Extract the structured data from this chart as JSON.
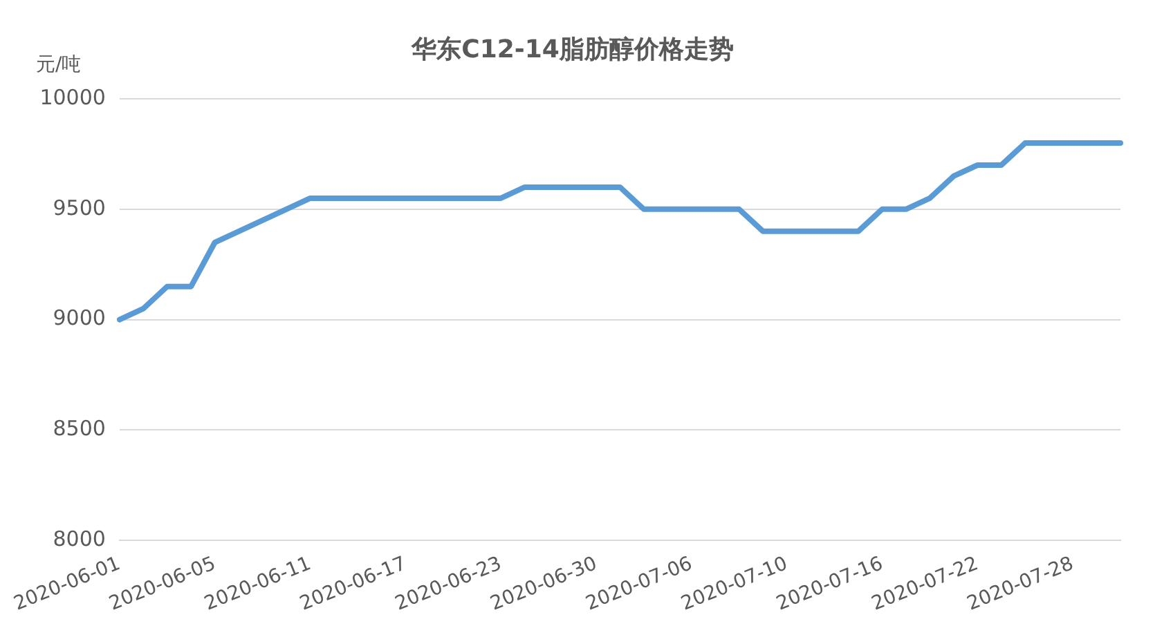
{
  "chart_data": {
    "type": "line",
    "title": "华东C12-14脂肪醇价格走势",
    "ylabel": "元/吨",
    "categories": [
      "2020-06-01",
      null,
      null,
      null,
      "2020-06-05",
      null,
      null,
      null,
      "2020-06-11",
      null,
      null,
      null,
      "2020-06-17",
      null,
      null,
      null,
      "2020-06-23",
      null,
      null,
      null,
      "2020-06-30",
      null,
      null,
      null,
      "2020-07-06",
      null,
      null,
      null,
      "2020-07-10",
      null,
      null,
      null,
      "2020-07-16",
      null,
      null,
      null,
      "2020-07-22",
      null,
      null,
      null,
      "2020-07-28",
      null,
      null
    ],
    "series": [
      {
        "color": "#5b9bd5",
        "values": [
          9000,
          9050,
          9150,
          9150,
          9350,
          9400,
          9450,
          9500,
          9550,
          9550,
          9550,
          9550,
          9550,
          9550,
          9550,
          9550,
          9550,
          9600,
          9600,
          9600,
          9600,
          9600,
          9500,
          9500,
          9500,
          9500,
          9500,
          9400,
          9400,
          9400,
          9400,
          9400,
          9500,
          9500,
          9550,
          9650,
          9700,
          9700,
          9800,
          9800,
          9800,
          9800,
          9800
        ]
      }
    ],
    "ylim": [
      8000,
      10000
    ],
    "yticks": [
      8000,
      8500,
      9000,
      9500,
      10000
    ],
    "grid": "y",
    "legend": false,
    "marker": "none",
    "line_style": "solid"
  }
}
